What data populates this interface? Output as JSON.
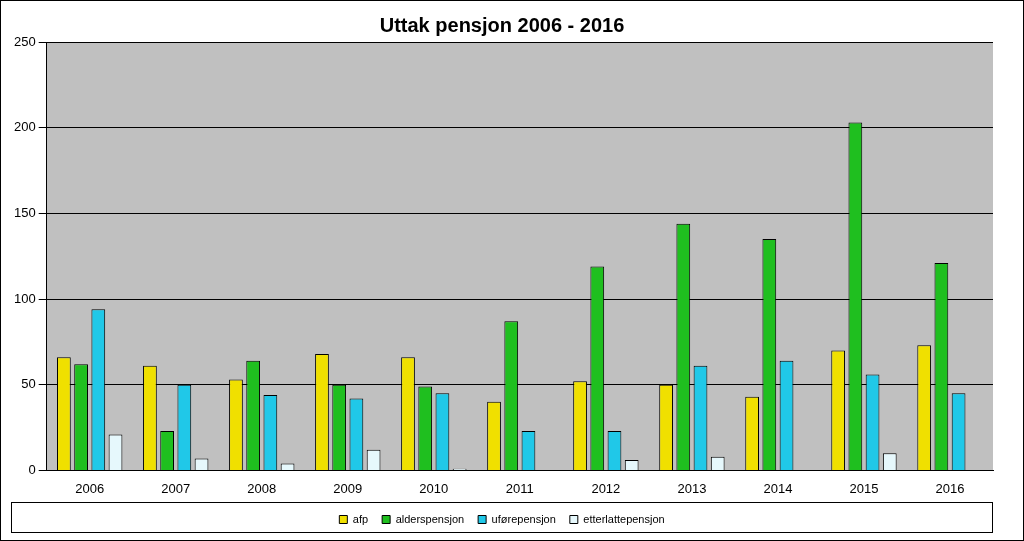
{
  "chart_data": {
    "type": "bar",
    "title": "Uttak pensjon 2006 - 2016",
    "categories": [
      "2006",
      "2007",
      "2008",
      "2009",
      "2010",
      "2011",
      "2012",
      "2013",
      "2014",
      "2015",
      "2016"
    ],
    "series": [
      {
        "name": "afp",
        "color": "#f0e000",
        "values": [
          66,
          61,
          53,
          68,
          66,
          40,
          52,
          50,
          43,
          70,
          73
        ]
      },
      {
        "name": "alderspensjon",
        "color": "#1fbf1f",
        "values": [
          62,
          23,
          64,
          50,
          49,
          87,
          119,
          144,
          135,
          203,
          121
        ]
      },
      {
        "name": "uførepensjon",
        "color": "#20c8e8",
        "values": [
          94,
          50,
          44,
          42,
          45,
          23,
          23,
          61,
          64,
          56,
          45
        ]
      },
      {
        "name": "etterlattepensjon",
        "color": "#e6f8fc",
        "values": [
          21,
          7,
          4,
          12,
          1,
          0,
          6,
          8,
          0,
          10,
          0
        ]
      }
    ],
    "ylim": [
      0,
      250
    ],
    "yticks": [
      0,
      50,
      100,
      150,
      200,
      250
    ],
    "grid": true,
    "legend": "bottom"
  }
}
